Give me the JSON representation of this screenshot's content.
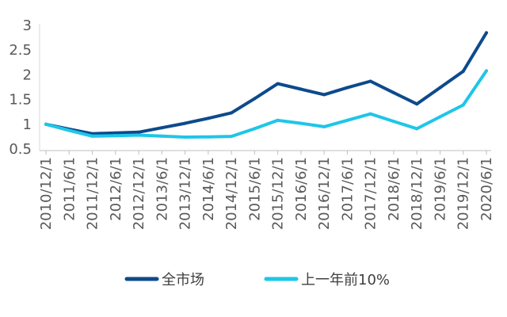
{
  "chart_data": {
    "type": "line",
    "title": "",
    "xlabel": "",
    "ylabel": "",
    "ylim": [
      0.5,
      3
    ],
    "y_ticks": [
      "0.5",
      "1",
      "1.5",
      "2",
      "2.5",
      "3"
    ],
    "y_tick_values": [
      0.5,
      1,
      1.5,
      2,
      2.5,
      3
    ],
    "grid": false,
    "legend_position": "bottom",
    "categories": [
      "2010/12/1",
      "2011/6/1",
      "2011/12/1",
      "2012/6/1",
      "2012/12/1",
      "2013/6/1",
      "2013/12/1",
      "2014/6/1",
      "2014/12/1",
      "2015/6/1",
      "2015/12/1",
      "2016/6/1",
      "2016/12/1",
      "2017/6/1",
      "2017/12/1",
      "2018/6/1",
      "2018/12/1",
      "2019/6/1",
      "2019/12/1",
      "2020/6/1"
    ],
    "series": [
      {
        "name": "全市场",
        "color": "#0d4a8c",
        "values": [
          1.0,
          0.9,
          0.81,
          0.825,
          0.84,
          0.93,
          1.02,
          1.12,
          1.23,
          1.52,
          1.82,
          1.71,
          1.6,
          1.74,
          1.87,
          1.64,
          1.41,
          1.74,
          2.07,
          2.85
        ]
      },
      {
        "name": "上一年前10%",
        "color": "#1ec6e8",
        "values": [
          1.0,
          0.875,
          0.76,
          0.77,
          0.78,
          0.76,
          0.74,
          0.745,
          0.755,
          0.91,
          1.08,
          1.02,
          0.95,
          1.08,
          1.21,
          1.06,
          0.91,
          1.15,
          1.39,
          2.08
        ]
      }
    ]
  }
}
